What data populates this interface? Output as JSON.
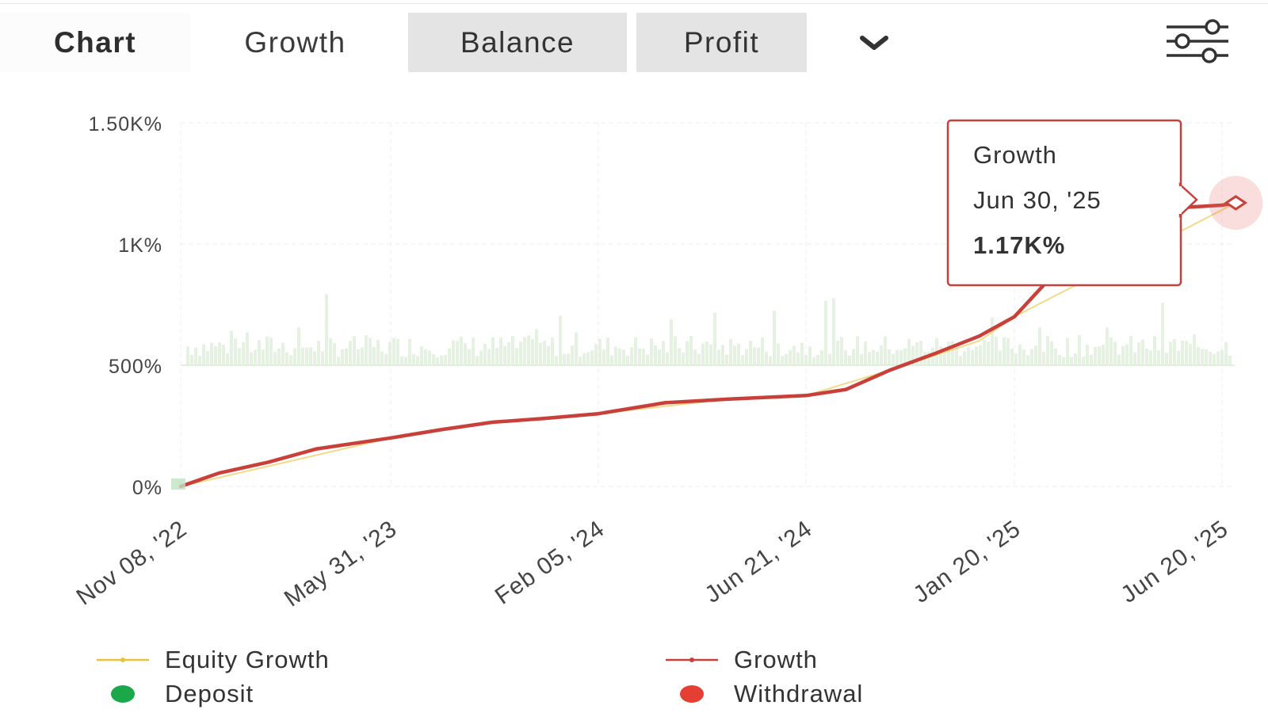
{
  "tabs": [
    {
      "label": "Chart"
    },
    {
      "label": "Growth"
    },
    {
      "label": "Balance"
    },
    {
      "label": "Profit"
    }
  ],
  "icons": {
    "more": "chevron-down-icon",
    "settings": "sliders-icon"
  },
  "colors": {
    "growth": "#c9403a",
    "equity": "#e8c23a",
    "deposit": "#1aa84a",
    "withdrawal": "#e53e32",
    "volume": "#cfe8c8"
  },
  "tooltip": {
    "title": "Growth",
    "date": "Jun 30, '25",
    "value": "1.17K%"
  },
  "legend": [
    {
      "label": "Equity Growth",
      "kind": "line",
      "color": "#e8c23a"
    },
    {
      "label": "Growth",
      "kind": "line",
      "color": "#c9403a"
    },
    {
      "label": "Deposit",
      "kind": "dot",
      "color": "#1aa84a"
    },
    {
      "label": "Withdrawal",
      "kind": "dot",
      "color": "#e53e32"
    }
  ],
  "chart_data": {
    "type": "line",
    "y_ticks": [
      "0%",
      "500%",
      "1K%",
      "1.50K%"
    ],
    "y_tick_values": [
      0,
      500,
      1000,
      1500
    ],
    "ylim": [
      0,
      1500
    ],
    "x_ticks": [
      "Nov 08, '22",
      "May 31, '23",
      "Feb 05, '24",
      "Jun 21, '24",
      "Jan 20, '25",
      "Jun 20, '25"
    ],
    "x_tick_dates": [
      "2022-11-08",
      "2023-05-31",
      "2024-02-05",
      "2024-06-21",
      "2025-01-20",
      "2025-06-20"
    ],
    "grid": true,
    "legend_position": "bottom",
    "series": [
      {
        "name": "Growth",
        "x": [
          "2022-11-08",
          "2022-12-15",
          "2023-02-01",
          "2023-03-20",
          "2023-05-31",
          "2023-08-01",
          "2023-10-01",
          "2023-12-01",
          "2024-02-05",
          "2024-03-20",
          "2024-05-01",
          "2024-06-21",
          "2024-08-01",
          "2024-09-15",
          "2024-11-01",
          "2024-12-15",
          "2025-01-20",
          "2025-02-20",
          "2025-03-20",
          "2025-04-20",
          "2025-05-20",
          "2025-06-20",
          "2025-06-30"
        ],
        "y": [
          0,
          55,
          100,
          155,
          200,
          235,
          265,
          280,
          300,
          345,
          360,
          375,
          400,
          480,
          550,
          620,
          700,
          890,
          1100,
          1135,
          1150,
          1160,
          1170
        ]
      },
      {
        "name": "Equity Growth",
        "x": [
          "2022-11-08",
          "2023-05-31",
          "2023-10-01",
          "2024-02-05",
          "2024-05-01",
          "2024-06-21",
          "2024-09-15",
          "2024-12-15",
          "2025-01-20",
          "2025-06-30"
        ],
        "y": [
          0,
          200,
          265,
          300,
          360,
          375,
          480,
          600,
          700,
          1170
        ]
      }
    ],
    "highlight": {
      "series": "Growth",
      "x": "2025-06-30",
      "y": 1170
    }
  }
}
